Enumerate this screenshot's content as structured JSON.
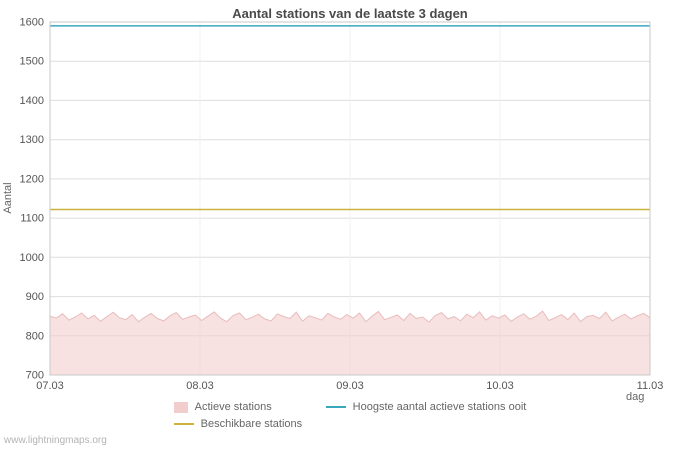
{
  "page": {
    "watermark": "www.lightningmaps.org"
  },
  "chart_data": {
    "type": "area",
    "title": "Aantal stations van de laatste 3 dagen",
    "xlabel": "dag",
    "ylabel": "Aantal",
    "ylim": [
      700,
      1600
    ],
    "y_ticks": [
      700,
      800,
      900,
      1000,
      1100,
      1200,
      1300,
      1400,
      1500,
      1600
    ],
    "x_ticks": [
      "07.03",
      "08.03",
      "09.03",
      "10.03",
      "11.03"
    ],
    "grid": true,
    "legend_position": "bottom",
    "colors": {
      "grid": "#dedede",
      "plot_border": "#c9c9c9",
      "area_fill": "#f2cdcd",
      "available_line": "#ccb23d",
      "highest_line": "#3aa6bd"
    },
    "series": [
      {
        "name": "Actieve stations",
        "type": "area",
        "color": "#f2cdcd",
        "values": [
          850,
          845,
          856,
          840,
          848,
          858,
          843,
          852,
          837,
          849,
          860,
          846,
          841,
          854,
          836,
          847,
          857,
          844,
          838,
          851,
          859,
          842,
          848,
          853,
          839,
          850,
          861,
          845,
          836,
          852,
          858,
          841,
          847,
          855,
          843,
          838,
          856,
          849,
          844,
          860,
          837,
          851,
          846,
          840,
          857,
          848,
          842,
          854,
          845,
          858,
          836,
          850,
          862,
          841,
          847,
          853,
          839,
          857,
          844,
          848,
          835,
          852,
          859,
          843,
          849,
          838,
          855,
          846,
          861,
          840,
          851,
          845,
          853,
          837,
          848,
          856,
          842,
          850,
          863,
          839,
          846,
          854,
          841,
          858,
          836,
          849,
          852,
          844,
          860,
          838,
          847,
          855,
          843,
          851,
          857,
          846
        ]
      },
      {
        "name": "Beschikbare stations",
        "type": "line",
        "color": "#ccb23d",
        "constant": 1122
      },
      {
        "name": "Hoogste aantal actieve stations ooit",
        "type": "line",
        "color": "#3aa6bd",
        "constant": 1590
      }
    ]
  }
}
